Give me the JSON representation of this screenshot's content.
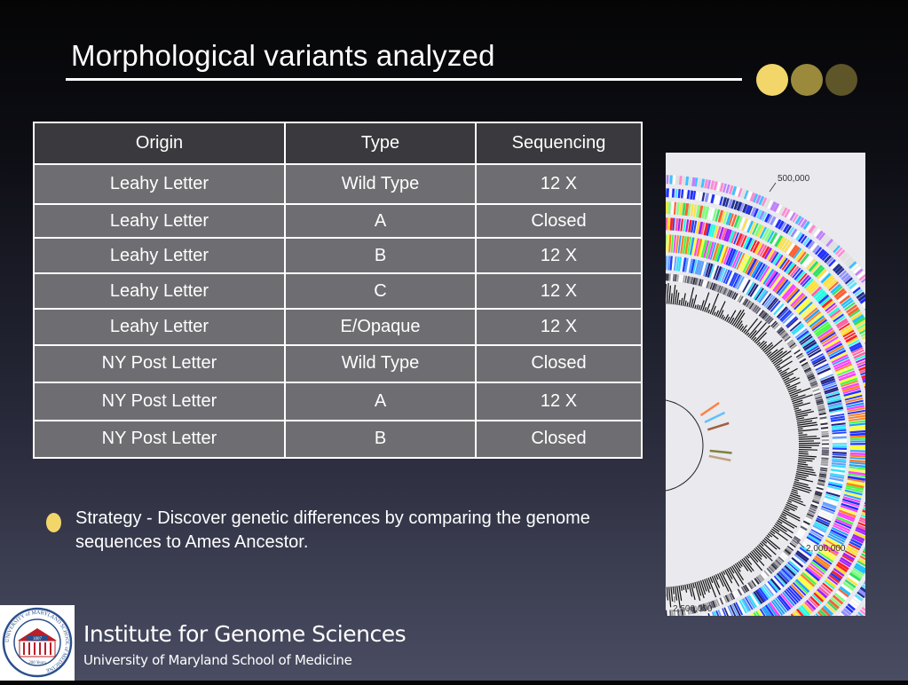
{
  "slide": {
    "title": "Morphological variants analyzed"
  },
  "table": {
    "headers": [
      "Origin",
      "Type",
      "Sequencing"
    ],
    "rows": [
      [
        "Leahy Letter",
        "Wild Type",
        "12 X"
      ],
      [
        "Leahy Letter",
        "A",
        "Closed"
      ],
      [
        "Leahy Letter",
        "B",
        "12 X"
      ],
      [
        "Leahy Letter",
        "C",
        "12 X"
      ],
      [
        "Leahy Letter",
        "E/Opaque",
        "12 X"
      ],
      [
        "NY Post Letter",
        "Wild Type",
        "Closed"
      ],
      [
        "NY Post Letter",
        "A",
        "12 X"
      ],
      [
        "NY Post Letter",
        "B",
        "Closed"
      ]
    ]
  },
  "bullet": {
    "text": "Strategy - Discover genetic differences by comparing the genome sequences to Ames Ancestor."
  },
  "genome_map": {
    "labels": [
      "500,000",
      "2,000,000",
      "2,500,000"
    ]
  },
  "footer": {
    "org_name": "Institute for Genome Sciences",
    "org_sub": "University of Maryland School of Medicine",
    "logo_text": {
      "ring": "UNIVERSITY of MARYLAND SCHOOL of MEDICINE",
      "year": "1807",
      "years": "200 Years"
    }
  },
  "colors": {
    "accent_yellow": "#f2d66a",
    "accent_olive": "#9b8a3c",
    "accent_dark_olive": "#5e5528",
    "table_cell": "#6e6e72",
    "table_header": "#3a3a3e"
  }
}
